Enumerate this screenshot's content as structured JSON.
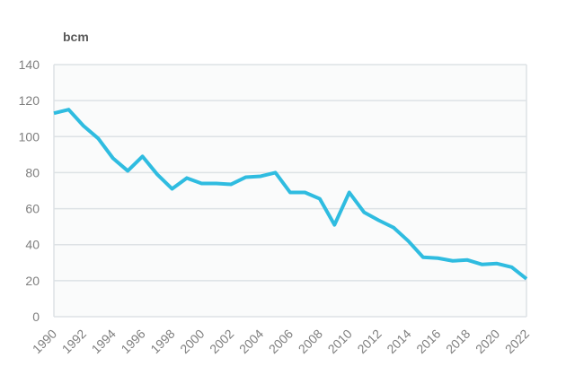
{
  "chart_data": {
    "type": "line",
    "title": "",
    "ylabel": "bcm",
    "xlabel": "",
    "ylim": [
      0,
      140
    ],
    "yticks": [
      0,
      20,
      40,
      60,
      80,
      100,
      120,
      140
    ],
    "xticks": [
      1990,
      1992,
      1994,
      1996,
      1998,
      2000,
      2002,
      2004,
      2006,
      2008,
      2010,
      2012,
      2014,
      2016,
      2018,
      2020,
      2022
    ],
    "grid": "horizontal",
    "legend": "none",
    "colors": {
      "line": "#2fbce0",
      "grid": "#dde2e5",
      "plot_bg": "#fafbfb",
      "tick_text": "#7f7f7f"
    },
    "x": [
      1990,
      1991,
      1992,
      1993,
      1994,
      1995,
      1996,
      1997,
      1998,
      1999,
      2000,
      2001,
      2002,
      2003,
      2004,
      2005,
      2006,
      2007,
      2008,
      2009,
      2010,
      2011,
      2012,
      2013,
      2014,
      2015,
      2016,
      2017,
      2018,
      2019,
      2020,
      2021,
      2022
    ],
    "values": [
      113,
      115,
      106,
      99,
      88,
      81,
      89,
      79,
      71,
      77,
      74,
      74,
      73.5,
      77.5,
      78,
      80,
      69,
      69,
      65.5,
      51,
      69,
      58,
      53.5,
      49.5,
      42,
      33,
      32.5,
      31,
      31.5,
      29,
      29.5,
      27.5,
      21
    ]
  }
}
